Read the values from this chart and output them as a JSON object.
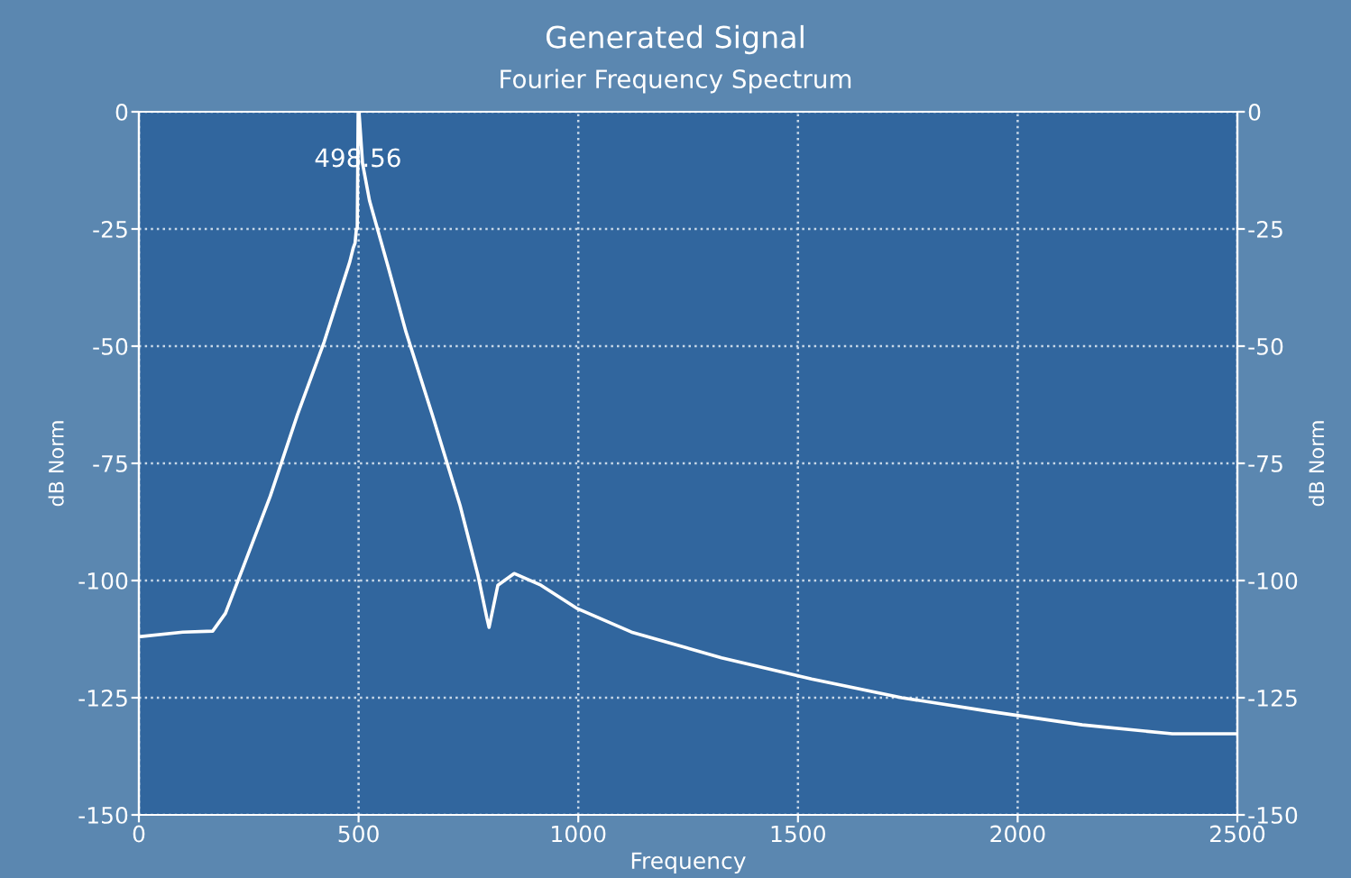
{
  "chart_data": {
    "type": "line",
    "title": "Generated Signal",
    "subtitle": "Fourier Frequency Spectrum",
    "xlabel": "Frequency",
    "ylabel": "dB Norm",
    "y2label": "dB Norm",
    "annotations": [
      {
        "text": "498.56",
        "x": 498.56,
        "y": 0
      }
    ],
    "series": [
      {
        "color": "#ffffff",
        "x": [
          0,
          100,
          168,
          197,
          238,
          299,
          361,
          422,
          480,
          488,
          492,
          495,
          497,
          499,
          501,
          509,
          525,
          567,
          608,
          669,
          731,
          772,
          792,
          797,
          817,
          854,
          915,
          998,
          1121,
          1326,
          1531,
          1736,
          1942,
          2147,
          2352,
          2500
        ],
        "values": [
          -112,
          -111,
          -110.8,
          -107,
          -97,
          -82,
          -64.6,
          -49,
          -32,
          -29,
          -28,
          -25,
          -25,
          0,
          0,
          -11,
          -19,
          -33,
          -47,
          -65,
          -84,
          -99,
          -108,
          -110,
          -101,
          -98.5,
          -101,
          -106,
          -111,
          -116.5,
          -121,
          -125,
          -128,
          -130.8,
          -132.7,
          -132.7
        ]
      }
    ],
    "xlim": [
      0,
      2500
    ],
    "xticks": [
      0,
      500,
      1000,
      1500,
      2000,
      2500
    ],
    "ylim": [
      -150,
      0
    ],
    "yticks": [
      -150,
      -125,
      -100,
      -75,
      -50,
      -25,
      0
    ],
    "y2lim": [
      -150,
      0
    ],
    "y2ticks": [
      -150,
      -125,
      -100,
      -75,
      -50,
      -25,
      0
    ],
    "grid": true,
    "legend": false,
    "marker": "none",
    "line_style": "solid"
  }
}
